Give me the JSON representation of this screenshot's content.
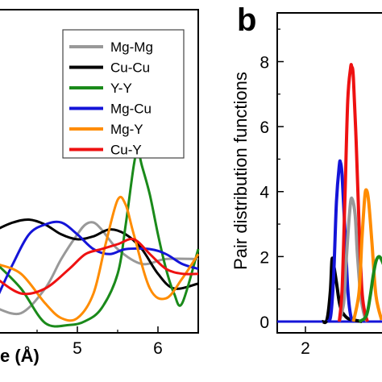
{
  "chart_data": [
    {
      "type": "line",
      "panel": "",
      "xlabel": "e (Å)",
      "xlim": [
        4.0,
        6.5
      ],
      "ylim": [
        0,
        3.2
      ],
      "xticks": [
        "5",
        "6"
      ],
      "xtick_values": [
        5,
        6
      ],
      "legend_position": "top-right",
      "series": [
        {
          "name": "Mg-Mg",
          "color": "#999999",
          "x": [
            4.0,
            4.3,
            4.6,
            4.8,
            5.0,
            5.1,
            5.2,
            5.3,
            5.5,
            5.8,
            6.1,
            6.5
          ],
          "y": [
            0.25,
            0.2,
            0.45,
            0.75,
            1.0,
            1.1,
            1.12,
            1.05,
            0.85,
            0.7,
            0.75,
            0.75
          ]
        },
        {
          "name": "Cu-Cu",
          "color": "#000000",
          "x": [
            4.0,
            4.2,
            4.4,
            4.6,
            4.8,
            5.0,
            5.2,
            5.4,
            5.6,
            5.8,
            6.0,
            6.2,
            6.5
          ],
          "y": [
            1.05,
            1.12,
            1.15,
            1.1,
            1.0,
            0.95,
            0.98,
            1.05,
            1.0,
            0.85,
            0.6,
            0.45,
            0.5
          ]
        },
        {
          "name": "Y-Y",
          "color": "#1a8a1a",
          "x": [
            4.0,
            4.3,
            4.6,
            4.9,
            5.1,
            5.3,
            5.5,
            5.6,
            5.7,
            5.75,
            5.8,
            5.9,
            6.0,
            6.1,
            6.2,
            6.3,
            6.5
          ],
          "y": [
            0.7,
            0.45,
            0.1,
            0.08,
            0.12,
            0.25,
            0.6,
            1.1,
            1.7,
            1.85,
            1.7,
            1.4,
            1.0,
            0.65,
            0.4,
            0.3,
            0.85
          ]
        },
        {
          "name": "Mg-Cu",
          "color": "#1414d8",
          "x": [
            4.0,
            4.2,
            4.4,
            4.6,
            4.8,
            5.0,
            5.2,
            5.4,
            5.6,
            5.9,
            6.1,
            6.3,
            6.5
          ],
          "y": [
            0.35,
            0.7,
            1.0,
            1.1,
            1.12,
            1.0,
            0.85,
            0.8,
            0.85,
            0.85,
            0.8,
            0.7,
            0.65
          ]
        },
        {
          "name": "Mg-Y",
          "color": "#ff8c00",
          "x": [
            4.0,
            4.3,
            4.6,
            4.8,
            5.0,
            5.2,
            5.35,
            5.5,
            5.6,
            5.7,
            5.9,
            6.1,
            6.3,
            6.5
          ],
          "y": [
            0.7,
            0.6,
            0.3,
            0.15,
            0.15,
            0.4,
            0.9,
            1.35,
            1.3,
            1.0,
            0.45,
            0.35,
            0.55,
            0.8
          ]
        },
        {
          "name": "Cu-Y",
          "color": "#ee1111",
          "x": [
            4.0,
            4.3,
            4.6,
            4.9,
            5.1,
            5.3,
            5.5,
            5.7,
            5.9,
            6.1,
            6.3,
            6.5
          ],
          "y": [
            0.55,
            0.4,
            0.45,
            0.65,
            0.8,
            0.85,
            0.9,
            0.95,
            0.8,
            0.65,
            0.6,
            0.6
          ]
        }
      ]
    },
    {
      "type": "line",
      "panel": "b",
      "ylabel": "Pair distribution functions",
      "xlim": [
        1.5,
        3.5
      ],
      "ylim": [
        0,
        9.5
      ],
      "yticks": [
        "0",
        "2",
        "4",
        "6",
        "8"
      ],
      "ytick_values": [
        0,
        2,
        4,
        6,
        8
      ],
      "xticks": [
        "2"
      ],
      "xtick_values": [
        2
      ],
      "series": [
        {
          "name": "Cu-Cu",
          "color": "#000000",
          "x": [
            2.3,
            2.38,
            2.44,
            2.47,
            2.5,
            2.55,
            2.6,
            2.65,
            2.75,
            2.85,
            3.0
          ],
          "y": [
            0,
            0.05,
            0.9,
            1.9,
            1.75,
            1.2,
            0.6,
            0.3,
            0.1,
            0.05,
            0.0
          ]
        },
        {
          "name": "Mg-Cu",
          "color": "#1414d8",
          "x": [
            2.4,
            2.45,
            2.5,
            2.55,
            2.6,
            2.62,
            2.65,
            2.7,
            2.75,
            2.8,
            2.85
          ],
          "y": [
            0,
            0.2,
            1.4,
            3.7,
            4.8,
            4.9,
            4.5,
            2.8,
            1.0,
            0.2,
            0
          ]
        },
        {
          "name": "Mg-Mg",
          "color": "#999999",
          "x": [
            2.6,
            2.68,
            2.72,
            2.78,
            2.82,
            2.88,
            2.92,
            2.98,
            3.05,
            3.1
          ],
          "y": [
            0,
            0.6,
            1.8,
            3.3,
            3.8,
            3.3,
            2.1,
            0.8,
            0.15,
            0
          ]
        },
        {
          "name": "Cu-Y",
          "color": "#ee1111",
          "x": [
            2.6,
            2.65,
            2.7,
            2.75,
            2.8,
            2.82,
            2.85,
            2.9,
            2.95,
            3.0,
            3.05,
            3.1
          ],
          "y": [
            0,
            1.0,
            3.8,
            6.8,
            7.8,
            7.85,
            7.5,
            5.5,
            3.0,
            1.0,
            0.3,
            0
          ]
        },
        {
          "name": "Mg-Y",
          "color": "#ff8c00",
          "x": [
            2.85,
            2.95,
            3.0,
            3.05,
            3.08,
            3.12,
            3.18,
            3.25,
            3.35
          ],
          "y": [
            0,
            0.9,
            2.5,
            3.8,
            4.05,
            3.7,
            2.4,
            0.8,
            0.05
          ]
        },
        {
          "name": "Y-Y",
          "color": "#1a8a1a",
          "x": [
            2.95,
            3.05,
            3.1,
            3.15,
            3.2,
            3.25,
            3.3,
            3.35,
            3.42,
            3.5
          ],
          "y": [
            0,
            0.1,
            0.3,
            0.8,
            1.4,
            1.85,
            2.0,
            1.9,
            1.6,
            1.3
          ]
        }
      ]
    }
  ]
}
